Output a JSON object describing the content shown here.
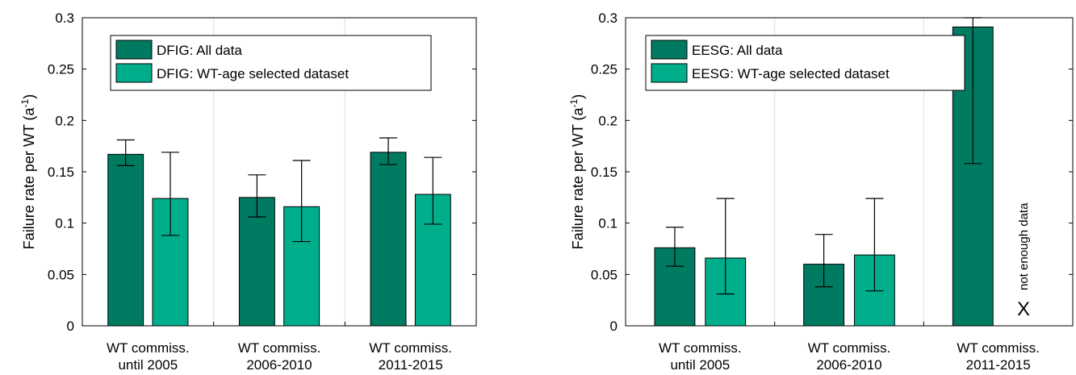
{
  "chart_data": [
    {
      "type": "bar",
      "categories": [
        [
          "WT commiss.",
          "until 2005"
        ],
        [
          "WT commiss.",
          "2006-2010"
        ],
        [
          "WT commiss.",
          "2011-2015"
        ]
      ],
      "series": [
        {
          "name": "DFIG: All data",
          "color": "#007a60",
          "values": [
            0.167,
            0.125,
            0.169
          ],
          "err_low": [
            0.156,
            0.106,
            0.157
          ],
          "err_high": [
            0.181,
            0.147,
            0.183
          ]
        },
        {
          "name": "DFIG: WT-age selected dataset",
          "color": "#00ae8c",
          "values": [
            0.124,
            0.116,
            0.128
          ],
          "err_low": [
            0.088,
            0.082,
            0.099
          ],
          "err_high": [
            0.169,
            0.161,
            0.164
          ]
        }
      ],
      "ylabel_main": "Failure rate per WT (a",
      "ylabel_sup": "-1",
      "ylabel_end": ")",
      "ylim": [
        0,
        0.3
      ],
      "yticks": [
        "0",
        "0.05",
        "0.1",
        "0.15",
        "0.2",
        "0.25",
        "0.3"
      ],
      "grid": "vertical separators between categories",
      "legend_position": "top-left"
    },
    {
      "type": "bar",
      "categories": [
        [
          "WT commiss.",
          "until 2005"
        ],
        [
          "WT commiss.",
          "2006-2010"
        ],
        [
          "WT commiss.",
          "2011-2015"
        ]
      ],
      "series": [
        {
          "name": "EESG: All data",
          "color": "#007a60",
          "values": [
            0.076,
            0.06,
            0.291
          ],
          "err_low": [
            0.058,
            0.038,
            0.158
          ],
          "err_high": [
            0.096,
            0.089,
            0.3
          ]
        },
        {
          "name": "EESG: WT-age selected dataset",
          "color": "#00ae8c",
          "values": [
            0.066,
            0.069,
            null
          ],
          "err_low": [
            0.031,
            0.034,
            null
          ],
          "err_high": [
            0.124,
            0.124,
            null
          ]
        }
      ],
      "annotation": {
        "category": 2,
        "series": 1,
        "marker": "X",
        "text": "not enough data"
      },
      "ylabel_main": "Failure rate per WT (a",
      "ylabel_sup": "-1",
      "ylabel_end": ")",
      "ylim": [
        0,
        0.3
      ],
      "yticks": [
        "0",
        "0.05",
        "0.1",
        "0.15",
        "0.2",
        "0.25",
        "0.3"
      ],
      "grid": "vertical separators between categories",
      "legend_position": "top-left"
    }
  ]
}
